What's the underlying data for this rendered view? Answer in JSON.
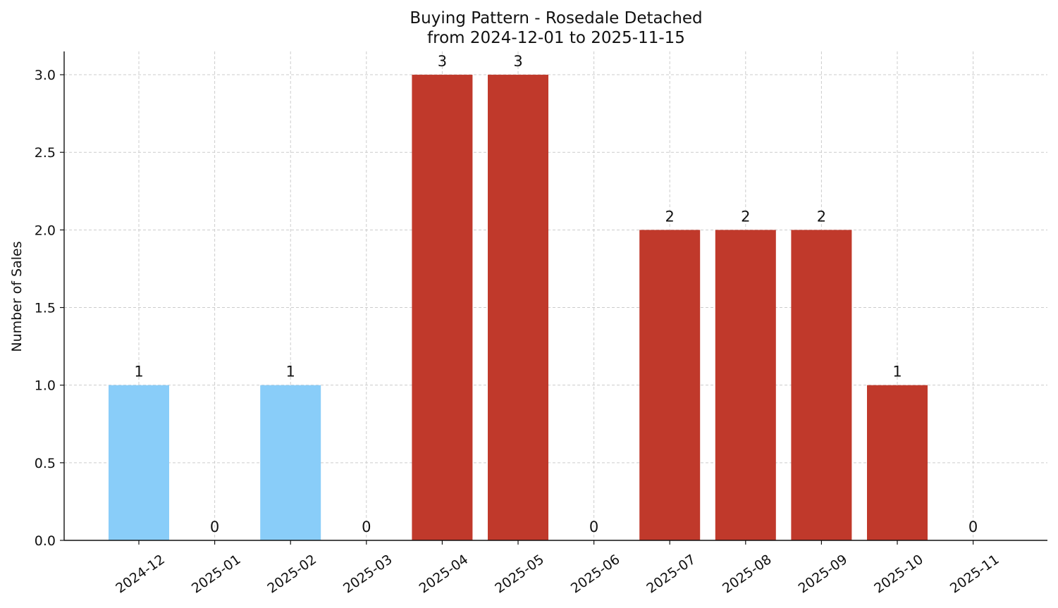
{
  "chart_data": {
    "type": "bar",
    "title": "Buying Pattern - Rosedale Detached",
    "subtitle": "from 2024-12-01 to 2025-11-15",
    "xlabel": "",
    "ylabel": "Number of Sales",
    "categories": [
      "2024-12",
      "2025-01",
      "2025-02",
      "2025-03",
      "2025-04",
      "2025-05",
      "2025-06",
      "2025-07",
      "2025-08",
      "2025-09",
      "2025-10",
      "2025-11"
    ],
    "values": [
      1,
      0,
      1,
      0,
      3,
      3,
      0,
      2,
      2,
      2,
      1,
      0
    ],
    "data_labels": [
      "1",
      "0",
      "1",
      "0",
      "3",
      "3",
      "0",
      "2",
      "2",
      "2",
      "1",
      "0"
    ],
    "bar_colors": [
      "#89cdf9",
      "#89cdf9",
      "#89cdf9",
      "#89cdf9",
      "#c0392b",
      "#c0392b",
      "#c0392b",
      "#c0392b",
      "#c0392b",
      "#c0392b",
      "#c0392b",
      "#c0392b"
    ],
    "ylim": [
      0,
      3.15
    ],
    "yticks": [
      0.0,
      0.5,
      1.0,
      1.5,
      2.0,
      2.5,
      3.0
    ],
    "ytick_labels": [
      "0.0",
      "0.5",
      "1.0",
      "1.5",
      "2.0",
      "2.5",
      "3.0"
    ],
    "grid": true,
    "legend": "none"
  }
}
